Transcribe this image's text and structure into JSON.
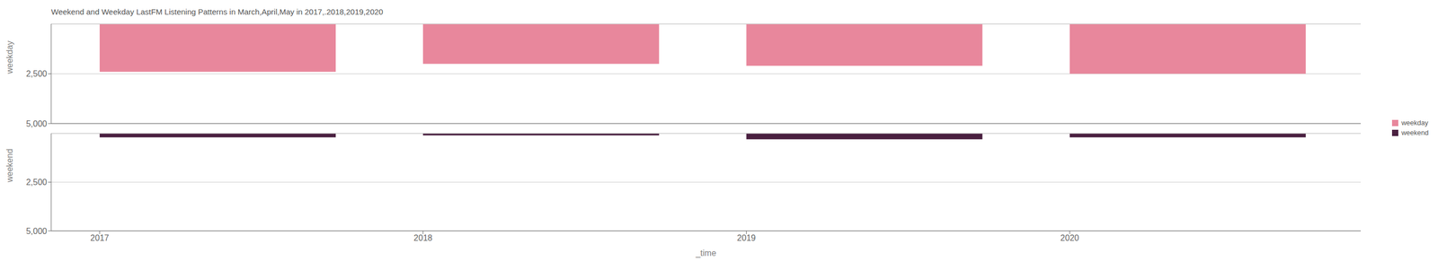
{
  "chart_data": [
    {
      "type": "bar",
      "title": "Weekend and Weekday LastFM Listening Patterns in March,April,May in 2017,.2018,2019,2020",
      "ylabel": "weekday",
      "x": [
        2017,
        2018,
        2019,
        2020
      ],
      "x_end": [
        2017.73,
        2018.73,
        2019.73,
        2020.73
      ],
      "series": [
        {
          "name": "weekday",
          "color": "#e8879c",
          "values": [
            2400,
            2000,
            2100,
            2500
          ]
        }
      ],
      "xlim": [
        2016.85,
        2020.9
      ],
      "xticks": [
        2017,
        2018,
        2019,
        2020
      ],
      "ylim": [
        5000,
        0
      ],
      "yticks": [
        {
          "value": 2500,
          "label": "2,500"
        },
        {
          "value": 5000,
          "label": "5,000"
        }
      ],
      "grid": true,
      "legend": "right",
      "tick_labels": "y"
    },
    {
      "type": "bar",
      "xlabel": "_time",
      "ylabel": "weekend",
      "x": [
        2017,
        2018,
        2019,
        2020
      ],
      "x_end": [
        2017.73,
        2018.73,
        2019.73,
        2020.73
      ],
      "series": [
        {
          "name": "weekend",
          "color": "#4a2040",
          "values": [
            200,
            100,
            300,
            200
          ]
        }
      ],
      "xlim": [
        2016.85,
        2020.9
      ],
      "xticks": [
        2017,
        2018,
        2019,
        2020
      ],
      "ylim": [
        5000,
        0
      ],
      "yticks": [
        {
          "value": 2500,
          "label": "2,500"
        },
        {
          "value": 5000,
          "label": "5,000"
        }
      ],
      "grid": true
    }
  ]
}
